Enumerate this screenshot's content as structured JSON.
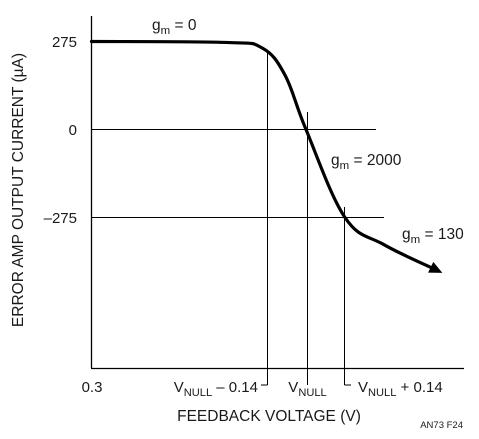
{
  "chart_data": {
    "type": "line",
    "title": "",
    "xlabel": "FEEDBACK VOLTAGE (V)",
    "ylabel": "ERROR AMP OUTPUT CURRENT (µA)",
    "ylim": [
      -600,
      330
    ],
    "grid": false,
    "legend": "none",
    "y_ticks": [
      {
        "value": 275,
        "label": "275"
      },
      {
        "value": 0,
        "label": "0"
      },
      {
        "value": -275,
        "label": "–275"
      }
    ],
    "x_ticks": [
      {
        "value": "0.3",
        "label": "0.3"
      },
      {
        "value": "VNULL – 0.14",
        "main": "V",
        "sub": "NULL",
        "rest": " – 0.14"
      },
      {
        "value": "VNULL",
        "main": "V",
        "sub": "NULL",
        "rest": ""
      },
      {
        "value": "VNULL + 0.14",
        "main": "V",
        "sub": "NULL",
        "rest": " + 0.14"
      }
    ],
    "annotations": [
      {
        "main": "g",
        "sub": "m",
        "rest": " = 0"
      },
      {
        "main": "g",
        "sub": "m",
        "rest": " = 2000"
      },
      {
        "main": "g",
        "sub": "m",
        "rest": " = 130"
      }
    ],
    "figure_id": "AN73 F24",
    "series": [
      {
        "points": [
          {
            "x": 0.3,
            "y": 275
          },
          {
            "x": 0.49,
            "y": 272
          },
          {
            "x": 0.525,
            "y": 255
          },
          {
            "x": 0.565,
            "y": 170
          },
          {
            "x": 0.6,
            "y": 0
          },
          {
            "x": 0.65,
            "y": -275
          },
          {
            "x": 0.72,
            "y": -360
          },
          {
            "x": 0.785,
            "y": -440
          }
        ],
        "color": "#000000"
      }
    ],
    "reference_lines": {
      "horizontal": [
        0,
        -275
      ],
      "vertical": [
        "VNULL – 0.14",
        "VNULL",
        "VNULL + 0.14"
      ]
    }
  }
}
